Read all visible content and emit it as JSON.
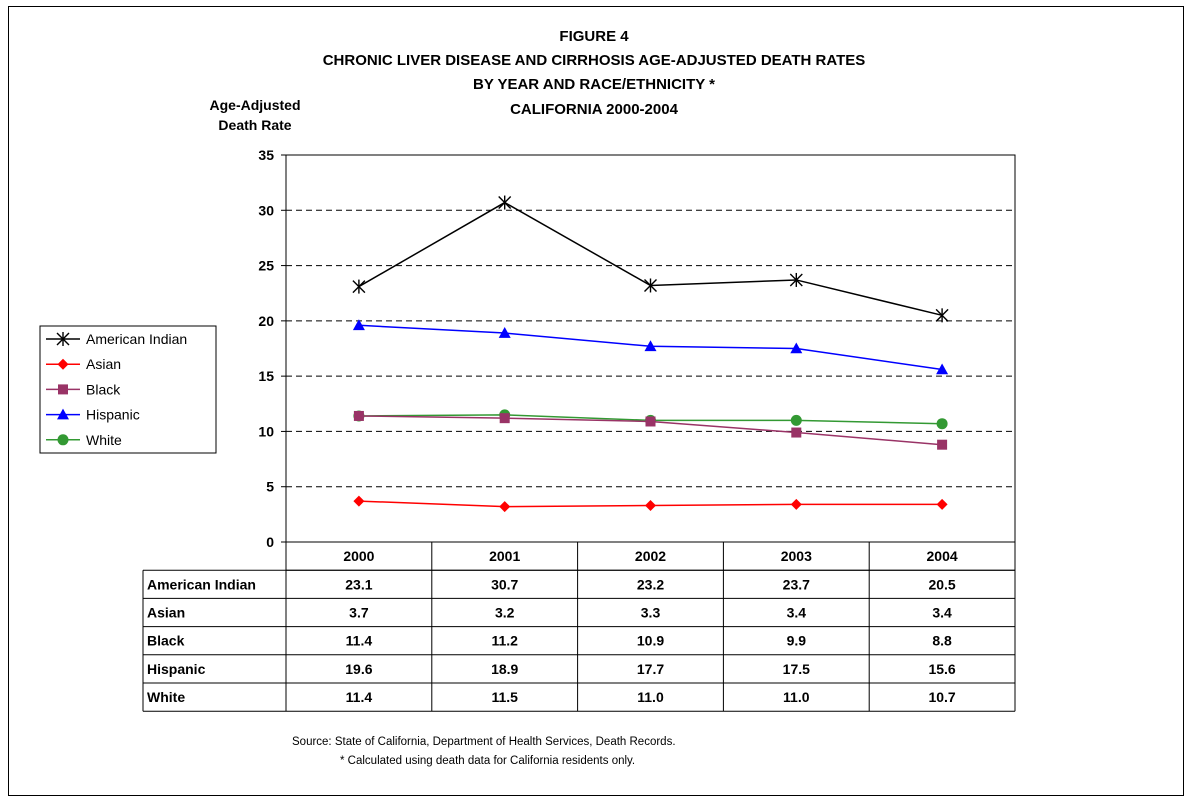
{
  "title_lines": [
    "FIGURE 4",
    "CHRONIC LIVER DISEASE AND CIRRHOSIS AGE-ADJUSTED DEATH RATES",
    "BY YEAR AND RACE/ETHNICITY *",
    "CALIFORNIA 2000-2004"
  ],
  "ylabel_lines": [
    "Age-Adjusted",
    "Death Rate"
  ],
  "source": "Source:  State of California, Department of Health Services, Death Records.",
  "footnote": "*  Calculated using death data for California residents only.",
  "chart_data": {
    "type": "line",
    "categories": [
      "2000",
      "2001",
      "2002",
      "2003",
      "2004"
    ],
    "ylim": [
      0,
      35
    ],
    "yticks": [
      0,
      5,
      10,
      15,
      20,
      25,
      30,
      35
    ],
    "grid": "horizontal dashed",
    "legend": "left",
    "series": [
      {
        "name": "American Indian",
        "marker": "star",
        "color": "#000000",
        "values": [
          23.1,
          30.7,
          23.2,
          23.7,
          20.5
        ],
        "labels": [
          "23.1",
          "30.7",
          "23.2",
          "23.7",
          "20.5"
        ]
      },
      {
        "name": "Asian",
        "marker": "diamond",
        "color": "#ff0000",
        "values": [
          3.7,
          3.2,
          3.3,
          3.4,
          3.4
        ],
        "labels": [
          "3.7",
          "3.2",
          "3.3",
          "3.4",
          "3.4"
        ]
      },
      {
        "name": "Black",
        "marker": "square",
        "color": "#993366",
        "values": [
          11.4,
          11.2,
          10.9,
          9.9,
          8.8
        ],
        "labels": [
          "11.4",
          "11.2",
          "10.9",
          "9.9",
          "8.8"
        ]
      },
      {
        "name": "Hispanic",
        "marker": "triangle",
        "color": "#0000ff",
        "values": [
          19.6,
          18.9,
          17.7,
          17.5,
          15.6
        ],
        "labels": [
          "19.6",
          "18.9",
          "17.7",
          "17.5",
          "15.6"
        ]
      },
      {
        "name": "White",
        "marker": "circle",
        "color": "#339933",
        "values": [
          11.4,
          11.5,
          11.0,
          11.0,
          10.7
        ],
        "labels": [
          "11.4",
          "11.5",
          "11.0",
          "11.0",
          "10.7"
        ]
      }
    ]
  }
}
